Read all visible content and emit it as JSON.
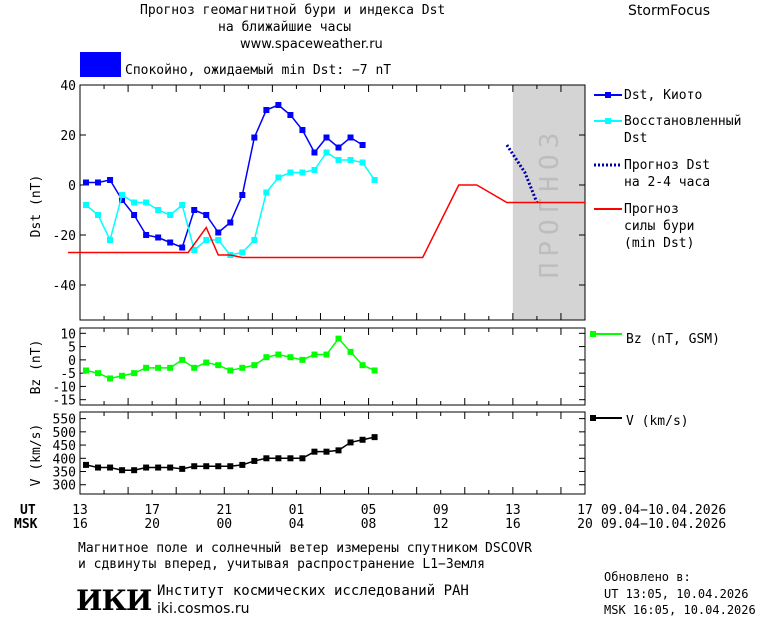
{
  "header": {
    "title_line1": "Прогноз геомагнитной бури и индекса Dst",
    "title_line2": "на ближайшие часы",
    "site": "www.spaceweather.ru",
    "brand": "StormFocus"
  },
  "status": {
    "text": "Спокойно, ожидаемый min Dst: −7 nT",
    "color": "#0000ff"
  },
  "colors": {
    "dst_kyoto": "#0000ff",
    "dst_restored": "#00ffff",
    "dst_forecast": "#0000aa",
    "storm": "#ff0000",
    "bz": "#00ff00",
    "v": "#000000",
    "forecast_bg": "#d4d4d4"
  },
  "chart_data": [
    {
      "type": "line",
      "ylabel": "Dst (nT)",
      "ylim": [
        -54,
        40
      ],
      "yticks": [
        40,
        20,
        0,
        -20,
        -40
      ],
      "x_hours": [
        0,
        40
      ],
      "x_unit": "hours since 09.04.2026 13:00 UT",
      "forecast_band_hours": [
        36,
        42
      ],
      "forecast_label": "ПРОГНОЗ",
      "series": [
        {
          "name": "Dst, Киото",
          "color": "#0000ff",
          "marker": "square",
          "x": [
            0.5,
            1.5,
            2.5,
            3.5,
            4.5,
            5.5,
            6.5,
            7.5,
            8.5,
            9.5,
            10.5,
            11.5,
            12.5,
            13.5,
            14.5,
            15.5,
            16.5,
            17.5,
            18.5,
            19.5,
            20.5,
            21.5,
            22.5,
            23.5,
            24.5,
            25.5,
            26.5,
            27.5,
            28.5
          ],
          "y": [
            1,
            1,
            2,
            -6,
            -12,
            -20,
            -21,
            -23,
            -25,
            -10,
            -12,
            -19,
            -15,
            -4,
            19,
            30,
            32,
            28,
            22,
            13,
            19,
            15,
            19,
            16,
            null,
            null,
            null,
            null,
            null
          ]
        },
        {
          "name": "Восстановленный Dst",
          "color": "#00ffff",
          "marker": "square",
          "x": [
            0.5,
            1.5,
            2.5,
            3.5,
            4.5,
            5.5,
            6.5,
            7.5,
            8.5,
            9.5,
            10.5,
            11.5,
            12.5,
            13.5,
            14.5,
            15.5,
            16.5,
            17.5,
            18.5,
            19.5,
            20.5,
            21.5,
            22.5,
            23.5,
            24.5
          ],
          "y": [
            -8,
            -12,
            -22,
            -4,
            -7,
            -7,
            -10,
            -12,
            -8,
            -26,
            -22,
            -22,
            -28,
            -27,
            -22,
            -3,
            3,
            5,
            5,
            6,
            13,
            10,
            10,
            9,
            2
          ]
        },
        {
          "name": "Прогноз Dst на 2-4 часа",
          "color": "#0000aa",
          "style": "dotted",
          "x": [
            35.5,
            37.0,
            38.0
          ],
          "y": [
            16,
            5,
            -7
          ]
        },
        {
          "name": "Прогноз силы бури (min Dst)",
          "color": "#ff0000",
          "style": "step",
          "x": [
            -1,
            9,
            10.5,
            11.5,
            12.5,
            13.5,
            14.5,
            27.5,
            28.5,
            31.5,
            33,
            35.5,
            42
          ],
          "y": [
            -27,
            -27,
            -17,
            -28,
            -28,
            -29,
            -29,
            -29,
            -29,
            0,
            0,
            -7,
            -7
          ]
        }
      ]
    },
    {
      "type": "line",
      "ylabel": "Bz (nT)",
      "ylim": [
        -17,
        12
      ],
      "yticks": [
        10,
        5,
        0,
        -5,
        -10,
        -15
      ],
      "series": [
        {
          "name": "Bz (nT, GSM)",
          "color": "#00ff00",
          "marker": "square",
          "x": [
            0.5,
            1.5,
            2.5,
            3.5,
            4.5,
            5.5,
            6.5,
            7.5,
            8.5,
            9.5,
            10.5,
            11.5,
            12.5,
            13.5,
            14.5,
            15.5,
            16.5,
            17.5,
            18.5,
            19.5,
            20.5,
            21.5,
            22.5,
            23.5,
            24.5
          ],
          "y": [
            -4,
            -5,
            -7,
            -6,
            -5,
            -3,
            -3,
            -3,
            0,
            -3,
            -1,
            -2,
            -4,
            -3,
            -2,
            1,
            2,
            1,
            0,
            2,
            2,
            8,
            3,
            -2,
            -4
          ]
        }
      ]
    },
    {
      "type": "line",
      "ylabel": "V (km/s)",
      "ylim": [
        265,
        575
      ],
      "yticks": [
        550,
        500,
        450,
        400,
        350,
        300
      ],
      "series": [
        {
          "name": "V (km/s)",
          "color": "#000000",
          "marker": "square",
          "x": [
            0.5,
            1.5,
            2.5,
            3.5,
            4.5,
            5.5,
            6.5,
            7.5,
            8.5,
            9.5,
            10.5,
            11.5,
            12.5,
            13.5,
            14.5,
            15.5,
            16.5,
            17.5,
            18.5,
            19.5,
            20.5,
            21.5,
            22.5,
            23.5,
            24.5
          ],
          "y": [
            375,
            365,
            365,
            355,
            355,
            365,
            365,
            365,
            360,
            370,
            370,
            370,
            370,
            375,
            390,
            400,
            400,
            400,
            400,
            425,
            425,
            430,
            460,
            470,
            480
          ]
        }
      ]
    }
  ],
  "x_axis": {
    "ut_label": "UT",
    "msk_label": "MSK",
    "ut_ticks": [
      "13",
      "17",
      "21",
      "01",
      "05",
      "09",
      "13",
      "17"
    ],
    "msk_ticks": [
      "16",
      "20",
      "00",
      "04",
      "08",
      "12",
      "16",
      "20"
    ],
    "range_ut": "09.04−10.04.2026",
    "range_msk": "09.04−10.04.2026"
  },
  "legend": {
    "dst_kyoto": "Dst, Киото",
    "restored_1": "Восстановленный",
    "restored_2": "Dst",
    "forecast_1": "Прогноз Dst",
    "forecast_2": "на 2-4 часа",
    "storm_1": "Прогноз",
    "storm_2": "силы бури",
    "storm_3": "(min Dst)",
    "bz": "Bz (nT, GSM)",
    "v": "V (km/s)"
  },
  "footer": {
    "line1": "Магнитное поле и солнечный ветер измерены спутником DSCOVR",
    "line2": "и сдвинуты вперед, учитывая распространение L1−Земля",
    "logo": "ИКИ",
    "institute": "Институт космических исследований РАН",
    "url": "iki.cosmos.ru",
    "updated_label": "Обновлено в:",
    "updated_ut": "UT  13:05, 10.04.2026",
    "updated_msk": "MSK 16:05, 10.04.2026"
  }
}
